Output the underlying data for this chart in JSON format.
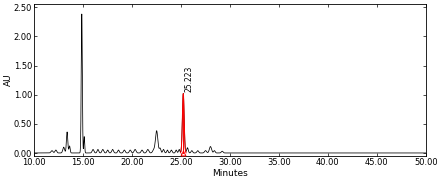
{
  "xlim": [
    10.0,
    50.0
  ],
  "ylim": [
    -0.05,
    2.55
  ],
  "xlabel": "Minutes",
  "ylabel": "AU",
  "yticks": [
    0.0,
    0.5,
    1.0,
    1.5,
    2.0,
    2.5
  ],
  "xticks": [
    10.0,
    15.0,
    20.0,
    25.0,
    30.0,
    35.0,
    40.0,
    45.0,
    50.0
  ],
  "xtick_labels": [
    "10.00",
    "15.00",
    "20.00",
    "25.00",
    "30.00",
    "35.00",
    "40.00",
    "45.00",
    "50.00"
  ],
  "ytick_labels": [
    "0.00",
    "0.50",
    "1.00",
    "1.50",
    "2.00",
    "2.50"
  ],
  "peak_label": "25.223",
  "peak_x": 25.223,
  "peak_y": 1.02,
  "red_color": "#FF0000",
  "black_color": "#000000",
  "bg_color": "#FFFFFF",
  "label_fontsize": 6.5,
  "tick_fontsize": 6
}
